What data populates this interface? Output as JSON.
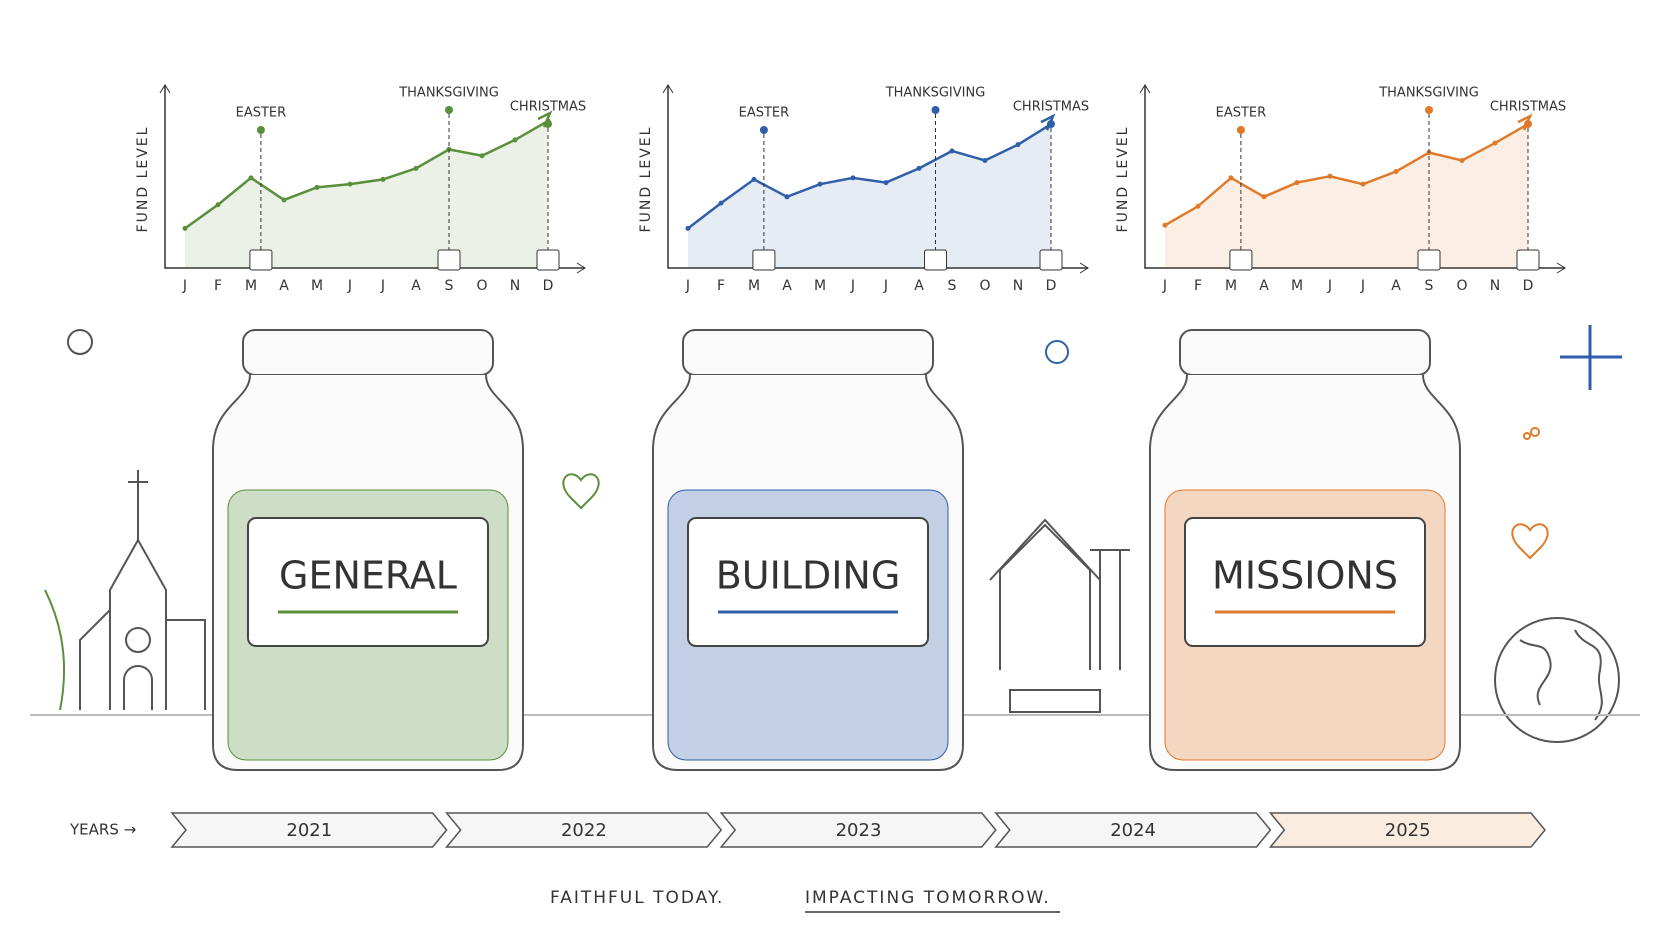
{
  "chart_data": [
    {
      "type": "line",
      "y_label": "FUND LEVEL",
      "color": "#5a8f3c",
      "ylim": [
        0,
        10
      ],
      "categories": [
        "J",
        "F",
        "M",
        "A",
        "M",
        "J",
        "J",
        "A",
        "S",
        "O",
        "N",
        "D"
      ],
      "values": [
        2,
        3.5,
        5.2,
        3.8,
        4.6,
        4.8,
        5.1,
        5.8,
        7,
        6.6,
        7.6,
        8.8
      ],
      "annotations": [
        {
          "label": "EASTER",
          "at": 2.3
        },
        {
          "label": "THANKSGIVING",
          "at": 8
        },
        {
          "label": "CHRISTMAS",
          "at": 11
        }
      ]
    },
    {
      "type": "line",
      "y_label": "FUND LEVEL",
      "color": "#2f5fa8",
      "ylim": [
        0,
        10
      ],
      "categories": [
        "J",
        "F",
        "M",
        "A",
        "M",
        "J",
        "J",
        "A",
        "S",
        "O",
        "N",
        "D"
      ],
      "values": [
        2,
        3.6,
        5.1,
        4,
        4.8,
        5.2,
        4.9,
        5.8,
        6.9,
        6.3,
        7.3,
        8.6
      ],
      "annotations": [
        {
          "label": "EASTER",
          "at": 2.3
        },
        {
          "label": "THANKSGIVING",
          "at": 7.5
        },
        {
          "label": "CHRISTMAS",
          "at": 11
        }
      ]
    },
    {
      "type": "line",
      "y_label": "FUND LEVEL",
      "color": "#e07a2a",
      "ylim": [
        0,
        10
      ],
      "categories": [
        "J",
        "F",
        "M",
        "A",
        "M",
        "J",
        "J",
        "A",
        "S",
        "O",
        "N",
        "D"
      ],
      "values": [
        2.2,
        3.4,
        5.2,
        4,
        4.9,
        5.3,
        4.8,
        5.6,
        6.8,
        6.3,
        7.4,
        8.6
      ],
      "annotations": [
        {
          "label": "EASTER",
          "at": 2.3
        },
        {
          "label": "THANKSGIVING",
          "at": 8
        },
        {
          "label": "CHRISTMAS",
          "at": 11
        }
      ]
    }
  ],
  "jars": [
    {
      "label": "GENERAL"
    },
    {
      "label": "BUILDING"
    },
    {
      "label": "MISSIONS"
    }
  ],
  "timeline": {
    "label": "YEARS →",
    "years": [
      "2021",
      "2022",
      "2023",
      "2024",
      "2025"
    ]
  },
  "tagline": [
    "FAITHFUL TODAY.",
    "IMPACTING TOMORROW."
  ]
}
